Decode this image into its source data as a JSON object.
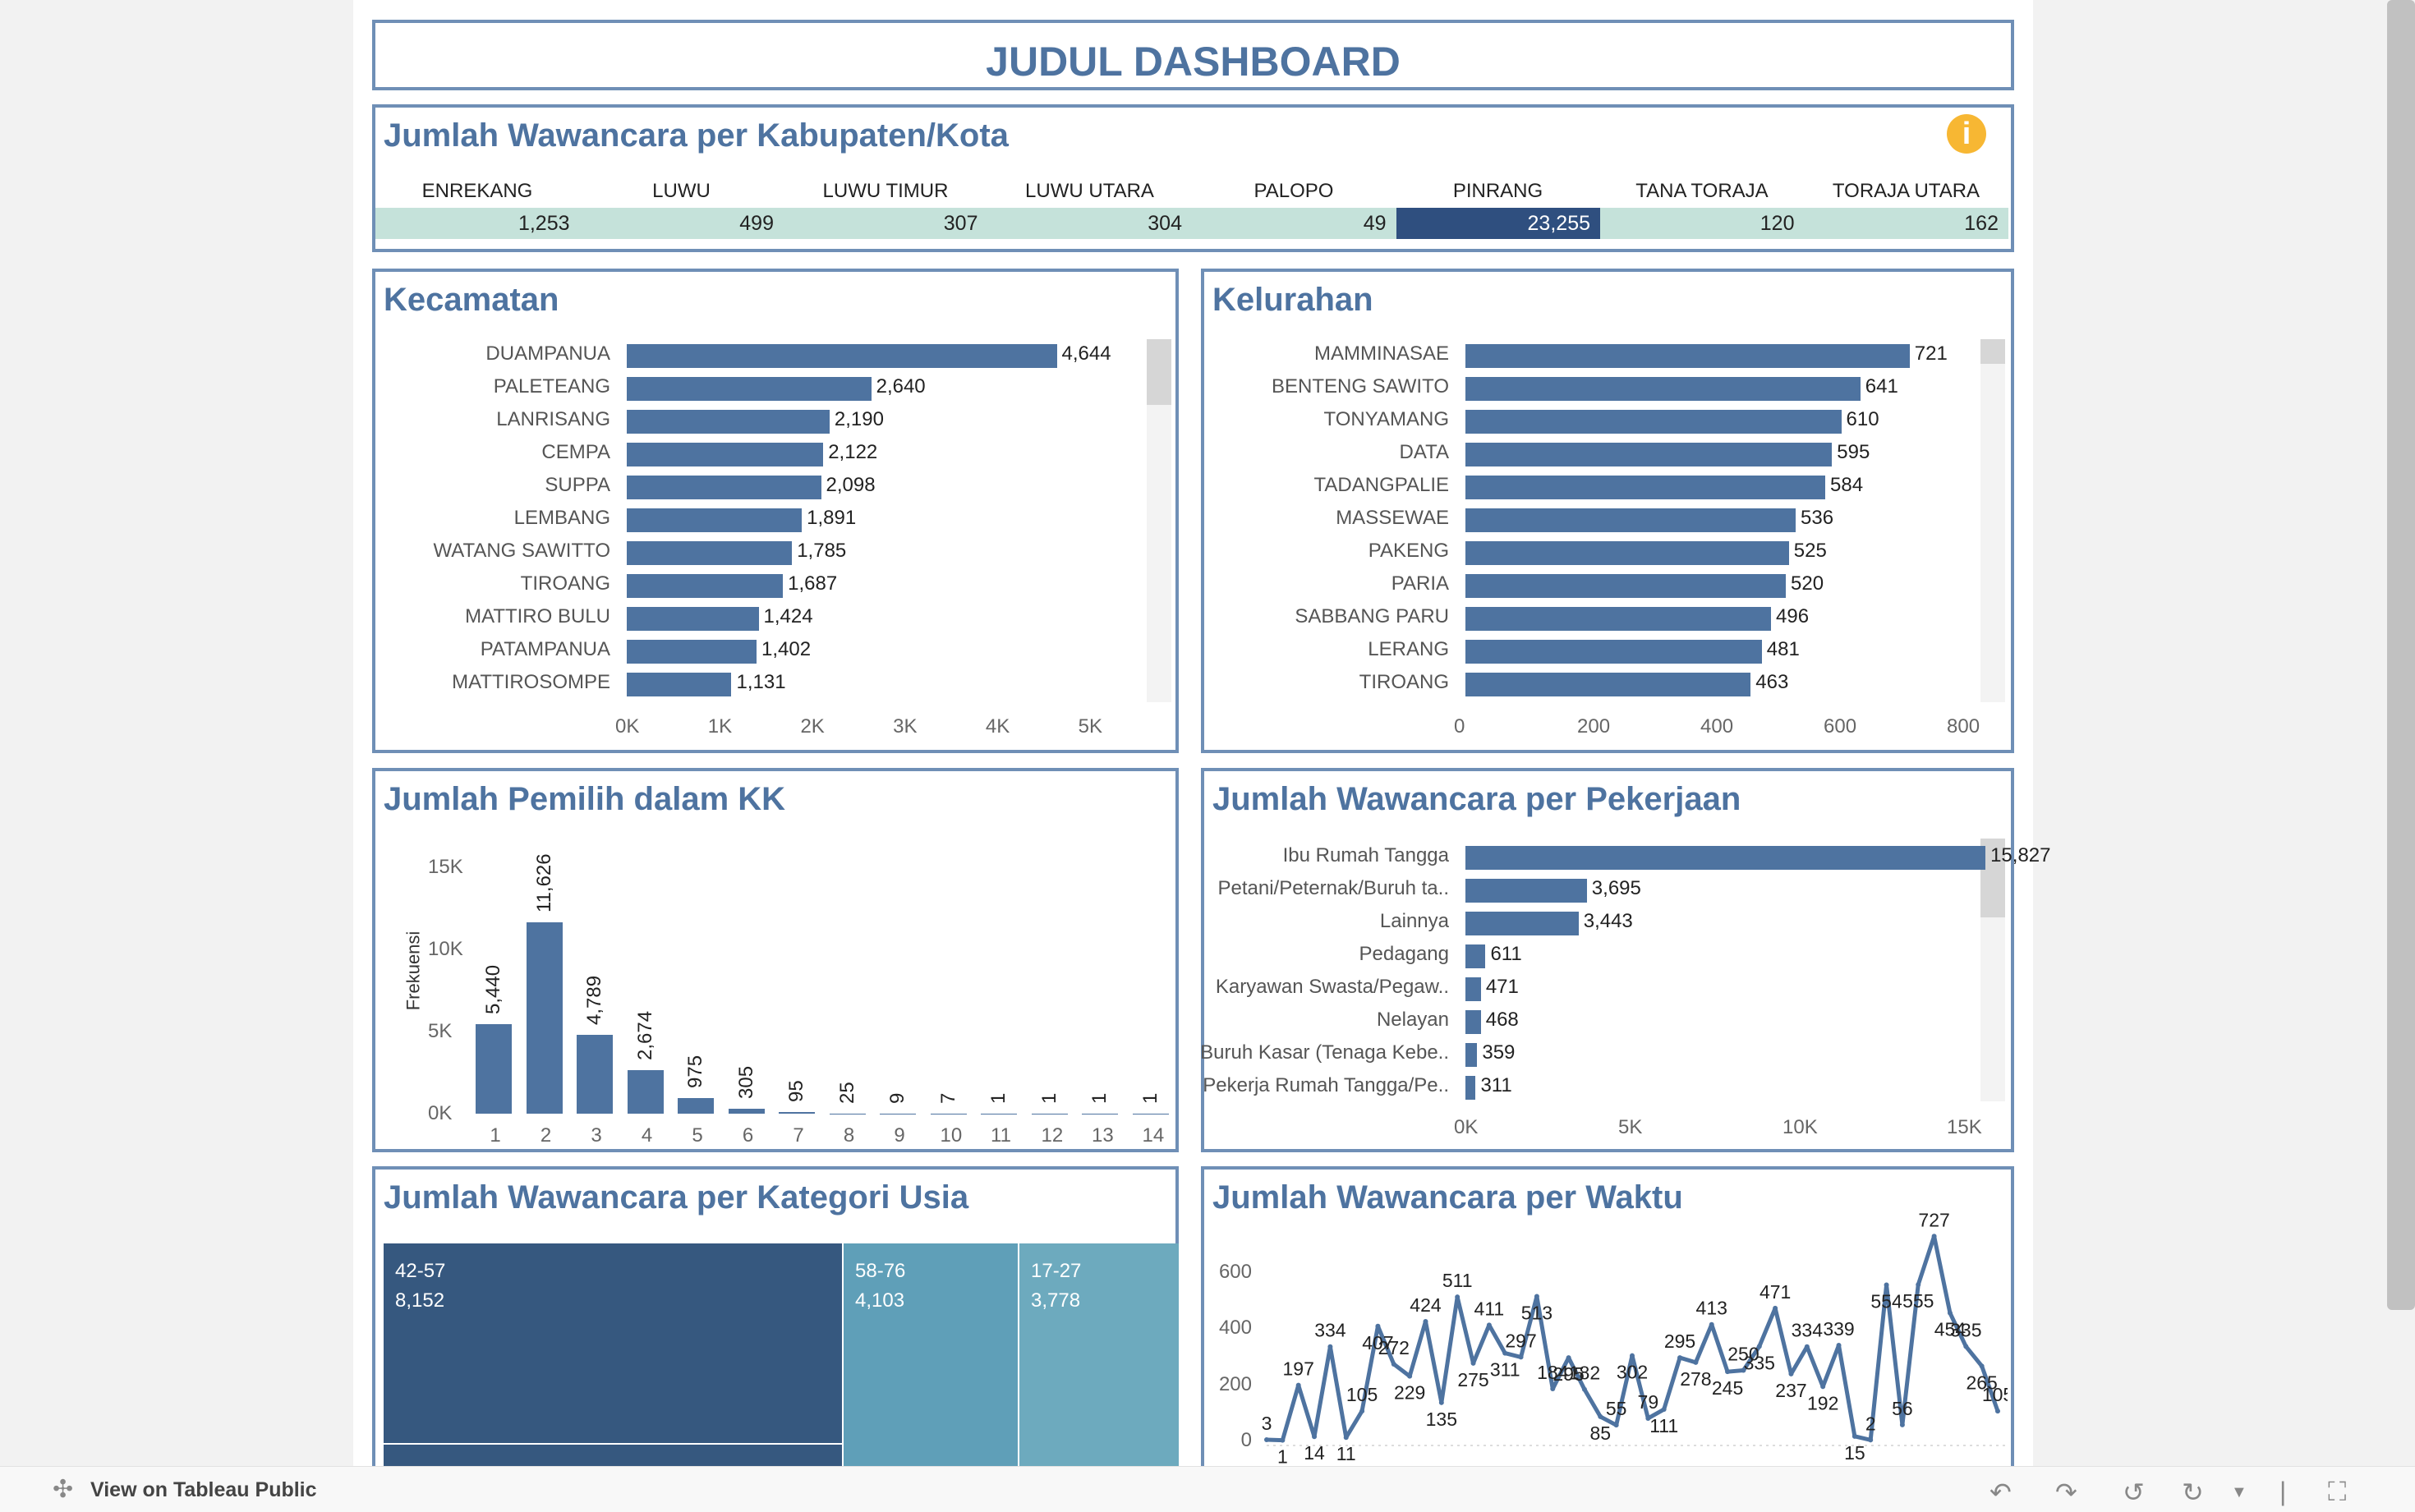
{
  "dashboard_title": "JUDUL DASHBOARD",
  "kabupaten": {
    "title": "Jumlah Wawancara per Kabupaten/Kota",
    "info_icon": "info-icon",
    "columns": [
      "ENREKANG",
      "LUWU",
      "LUWU TIMUR",
      "LUWU UTARA",
      "PALOPO",
      "PINRANG",
      "TANA TORAJA",
      "TORAJA UTARA"
    ],
    "values": [
      "1,253",
      "499",
      "307",
      "304",
      "49",
      "23,255",
      "120",
      "162"
    ],
    "highlight_index": 5,
    "colors": {
      "cell": "#c5e2da",
      "highlight": "#2f4f7f"
    }
  },
  "kecamatan": {
    "title": "Kecamatan",
    "axis_ticks": [
      "0K",
      "1K",
      "2K",
      "3K",
      "4K",
      "5K"
    ]
  },
  "kelurahan": {
    "title": "Kelurahan",
    "axis_ticks": [
      "0",
      "200",
      "400",
      "600",
      "800"
    ]
  },
  "pemilih": {
    "title": "Jumlah Pemilih dalam KK",
    "y_ticks": [
      "15K",
      "10K",
      "5K",
      "0K"
    ]
  },
  "pekerjaan": {
    "title": "Jumlah Wawancara per Pekerjaan",
    "axis_ticks": [
      "0K",
      "5K",
      "10K",
      "15K"
    ]
  },
  "usia": {
    "title": "Jumlah Wawancara per Kategori Usia",
    "cells": [
      {
        "label": "42-57",
        "value": "8,152",
        "color": "#36587f"
      },
      {
        "label": "58-76",
        "value": "4,103",
        "color": "#5f9fb8"
      },
      {
        "label": "17-27",
        "value": "3,778",
        "color": "#6daabe"
      }
    ]
  },
  "waktu": {
    "title": "Jumlah Wawancara per Waktu",
    "y_ticks": [
      "600",
      "400",
      "200",
      "0"
    ]
  },
  "footer": {
    "link_label": "View on Tableau Public"
  },
  "chart_data": [
    {
      "type": "bar",
      "orientation": "horizontal",
      "title": "Kecamatan",
      "categories": [
        "DUAMPANUA",
        "PALETEANG",
        "LANRISANG",
        "CEMPA",
        "SUPPA",
        "LEMBANG",
        "WATANG SAWITTO",
        "TIROANG",
        "MATTIRO BULU",
        "PATAMPANUA",
        "MATTIROSOMPE"
      ],
      "values": [
        4644,
        2640,
        2190,
        2122,
        2098,
        1891,
        1785,
        1687,
        1424,
        1402,
        1131
      ],
      "labels": [
        "4,644",
        "2,640",
        "2,190",
        "2,122",
        "2,098",
        "1,891",
        "1,785",
        "1,687",
        "1,424",
        "1,402",
        "1,131"
      ],
      "xlim": [
        0,
        5500
      ],
      "color": "#4e73a0"
    },
    {
      "type": "bar",
      "orientation": "horizontal",
      "title": "Kelurahan",
      "categories": [
        "MAMMINASAE",
        "BENTENG SAWITO",
        "TONYAMANG",
        "DATA",
        "TADANGPALIE",
        "MASSEWAE",
        "PAKENG",
        "PARIA",
        "SABBANG PARU",
        "LERANG",
        "TIROANG"
      ],
      "values": [
        721,
        641,
        610,
        595,
        584,
        536,
        525,
        520,
        496,
        481,
        463
      ],
      "labels": [
        "721",
        "641",
        "610",
        "595",
        "584",
        "536",
        "525",
        "520",
        "496",
        "481",
        "463"
      ],
      "xlim": [
        0,
        820
      ],
      "color": "#4e73a0"
    },
    {
      "type": "bar",
      "orientation": "vertical",
      "title": "Jumlah Pemilih dalam KK",
      "ylabel": "Frekuensi",
      "categories": [
        "1",
        "2",
        "3",
        "4",
        "5",
        "6",
        "7",
        "8",
        "9",
        "10",
        "11",
        "12",
        "13",
        "14"
      ],
      "values": [
        5440,
        11626,
        4789,
        2674,
        975,
        305,
        95,
        25,
        9,
        7,
        1,
        1,
        1,
        1
      ],
      "labels": [
        "5,440",
        "11,626",
        "4,789",
        "2,674",
        "975",
        "305",
        "95",
        "25",
        "9",
        "7",
        "1",
        "1",
        "1",
        "1"
      ],
      "ylim": [
        0,
        16500
      ],
      "color": "#4e73a0"
    },
    {
      "type": "bar",
      "orientation": "horizontal",
      "title": "Jumlah Wawancara per Pekerjaan",
      "categories": [
        "Ibu Rumah Tangga",
        "Petani/Peternak/Buruh ta..",
        "Lainnya",
        "Pedagang",
        "Karyawan Swasta/Pegaw..",
        "Nelayan",
        "Buruh Kasar (Tenaga Kebe..",
        "Pekerja Rumah Tangga/Pe.."
      ],
      "values": [
        15827,
        3695,
        3443,
        611,
        471,
        468,
        359,
        311
      ],
      "labels": [
        "15,827",
        "3,695",
        "3,443",
        "611",
        "471",
        "468",
        "359",
        "311"
      ],
      "xlim": [
        0,
        20000
      ],
      "color": "#4e73a0"
    },
    {
      "type": "treemap",
      "title": "Jumlah Wawancara per Kategori Usia",
      "categories": [
        "42-57",
        "58-76",
        "17-27"
      ],
      "values": [
        8152,
        4103,
        3778
      ]
    },
    {
      "type": "line",
      "title": "Jumlah Wawancara per Waktu",
      "values": [
        3,
        1,
        197,
        14,
        334,
        11,
        105,
        407,
        272,
        229,
        424,
        135,
        511,
        275,
        411,
        311,
        297,
        513,
        184,
        295,
        182,
        85,
        55,
        302,
        79,
        111,
        295,
        278,
        413,
        245,
        250,
        335,
        471,
        237,
        334,
        192,
        339,
        15,
        2,
        554,
        56,
        555,
        727,
        454,
        335,
        265,
        105
      ],
      "ylim": [
        0,
        760
      ],
      "color": "#4e73a0"
    }
  ]
}
